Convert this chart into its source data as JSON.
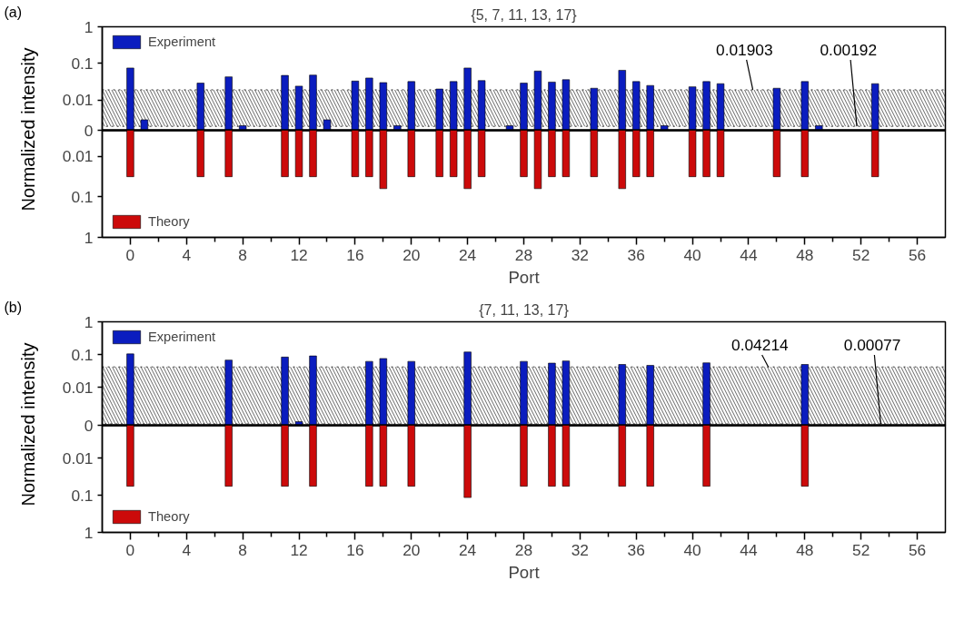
{
  "chart_data": [
    {
      "type": "bar",
      "title": "{5, 7, 11, 13, 17}",
      "ylabel": "Normalized intensity",
      "annotations": [
        "(a)",
        {
          "text": "0.01903",
          "x": 44.3,
          "y": 0.01903
        },
        {
          "text": "0.00192",
          "x": 51.7,
          "y": 0.00192
        }
      ],
      "xlim": [
        -2,
        58
      ],
      "ylim": [
        0.0015,
        1
      ],
      "yticks": [
        {
          "value": 0.0015,
          "label": "0"
        },
        0.01,
        0.1,
        1
      ],
      "log": true,
      "grid": false,
      "legend": "top left",
      "tick_labels": "y",
      "x": [
        0,
        1,
        5,
        7,
        8,
        11,
        12,
        13,
        14,
        16,
        17,
        18,
        19,
        20,
        22,
        23,
        24,
        25,
        27,
        28,
        29,
        30,
        31,
        33,
        35,
        36,
        37,
        38,
        40,
        41,
        42,
        46,
        48,
        49,
        53
      ],
      "series": [
        {
          "name": "Experiment",
          "color": "#0b1dbf",
          "values": [
            0.075,
            0.0029,
            0.029,
            0.043,
            0.002,
            0.047,
            0.024,
            0.048,
            0.0029,
            0.033,
            0.04,
            0.03,
            0.002,
            0.032,
            0.02,
            0.032,
            0.075,
            0.034,
            0.002,
            0.029,
            0.062,
            0.031,
            0.036,
            0.021,
            0.065,
            0.032,
            0.025,
            0.002,
            0.023,
            0.032,
            0.028,
            0.021,
            0.032,
            0.002,
            0.028
          ]
        }
      ],
      "bands": [
        {
          "axis": "y",
          "from": 0.00192,
          "to": 0.01903
        }
      ]
    },
    {
      "type": "bar",
      "xlabel": "Port",
      "xlim": [
        -2,
        58
      ],
      "ylim": [
        1,
        0.0023
      ],
      "yticks": [
        0.01,
        0.1,
        1
      ],
      "log": true,
      "grid": false,
      "legend": "bottom left",
      "xticks": [
        0,
        {
          "value": 2,
          "label": null
        },
        4,
        {
          "value": 6,
          "label": null
        },
        8,
        {
          "value": 10,
          "label": null
        },
        12,
        {
          "value": 14,
          "label": null
        },
        16,
        {
          "value": 18,
          "label": null
        },
        20,
        {
          "value": 22,
          "label": null
        },
        24,
        {
          "value": 26,
          "label": null
        },
        28,
        {
          "value": 30,
          "label": null
        },
        32,
        {
          "value": 34,
          "label": null
        },
        36,
        {
          "value": 38,
          "label": null
        },
        40,
        {
          "value": 42,
          "label": null
        },
        44,
        {
          "value": 46,
          "label": null
        },
        48,
        {
          "value": 50,
          "label": null
        },
        52,
        {
          "value": 54,
          "label": null
        },
        56
      ],
      "x": [
        0,
        5,
        7,
        11,
        12,
        13,
        16,
        17,
        18,
        20,
        22,
        23,
        24,
        25,
        28,
        29,
        30,
        31,
        33,
        35,
        36,
        37,
        40,
        41,
        42,
        46,
        48,
        53
      ],
      "series": [
        {
          "name": "Theory",
          "color": "#cc0a0a",
          "values": [
            0.032,
            0.032,
            0.032,
            0.032,
            0.032,
            0.032,
            0.032,
            0.032,
            0.063,
            0.032,
            0.032,
            0.032,
            0.063,
            0.032,
            0.032,
            0.063,
            0.032,
            0.032,
            0.032,
            0.063,
            0.032,
            0.032,
            0.032,
            0.032,
            0.032,
            0.032,
            0.032,
            0.032
          ]
        }
      ]
    },
    {
      "type": "bar",
      "title": "{7, 11, 13, 17}",
      "ylabel": "Normalized intensity",
      "annotations": [
        "(b)",
        {
          "text": "0.04214",
          "x": 45.4,
          "y": 0.04214
        },
        {
          "text": "0.00077",
          "x": 53.4,
          "y": 0.00077
        }
      ],
      "xlim": [
        -2,
        58
      ],
      "ylim": [
        0.0007,
        1
      ],
      "yticks": [
        {
          "value": 0.0007,
          "label": "0"
        },
        0.01,
        0.1,
        1
      ],
      "log": true,
      "grid": false,
      "legend": "top left",
      "tick_labels": "y",
      "x": [
        0,
        7,
        11,
        12,
        13,
        17,
        18,
        20,
        24,
        28,
        30,
        31,
        35,
        37,
        41,
        48
      ],
      "series": [
        {
          "name": "Experiment",
          "color": "#0b1dbf",
          "values": [
            0.105,
            0.068,
            0.084,
            0.0009,
            0.091,
            0.062,
            0.076,
            0.062,
            0.12,
            0.062,
            0.055,
            0.064,
            0.05,
            0.047,
            0.056,
            0.05
          ]
        }
      ],
      "bands": [
        {
          "axis": "y",
          "from": 0.00077,
          "to": 0.04214
        }
      ]
    },
    {
      "type": "bar",
      "xlabel": "Port",
      "xlim": [
        -2,
        58
      ],
      "ylim": [
        1,
        0.0013
      ],
      "yticks": [
        0.01,
        0.1,
        1
      ],
      "log": true,
      "grid": false,
      "legend": "bottom left",
      "xticks": [
        0,
        {
          "value": 2,
          "label": null
        },
        4,
        {
          "value": 6,
          "label": null
        },
        8,
        {
          "value": 10,
          "label": null
        },
        12,
        {
          "value": 14,
          "label": null
        },
        16,
        {
          "value": 18,
          "label": null
        },
        20,
        {
          "value": 22,
          "label": null
        },
        24,
        {
          "value": 26,
          "label": null
        },
        28,
        {
          "value": 30,
          "label": null
        },
        32,
        {
          "value": 34,
          "label": null
        },
        36,
        {
          "value": 38,
          "label": null
        },
        40,
        {
          "value": 42,
          "label": null
        },
        44,
        {
          "value": 46,
          "label": null
        },
        48,
        {
          "value": 50,
          "label": null
        },
        52,
        {
          "value": 54,
          "label": null
        },
        56
      ],
      "x": [
        0,
        7,
        11,
        13,
        17,
        18,
        20,
        24,
        28,
        30,
        31,
        35,
        37,
        41,
        48
      ],
      "series": [
        {
          "name": "Theory",
          "color": "#cc0a0a",
          "values": [
            0.057,
            0.057,
            0.057,
            0.057,
            0.057,
            0.057,
            0.057,
            0.115,
            0.057,
            0.057,
            0.057,
            0.057,
            0.057,
            0.057,
            0.057
          ]
        }
      ]
    }
  ]
}
